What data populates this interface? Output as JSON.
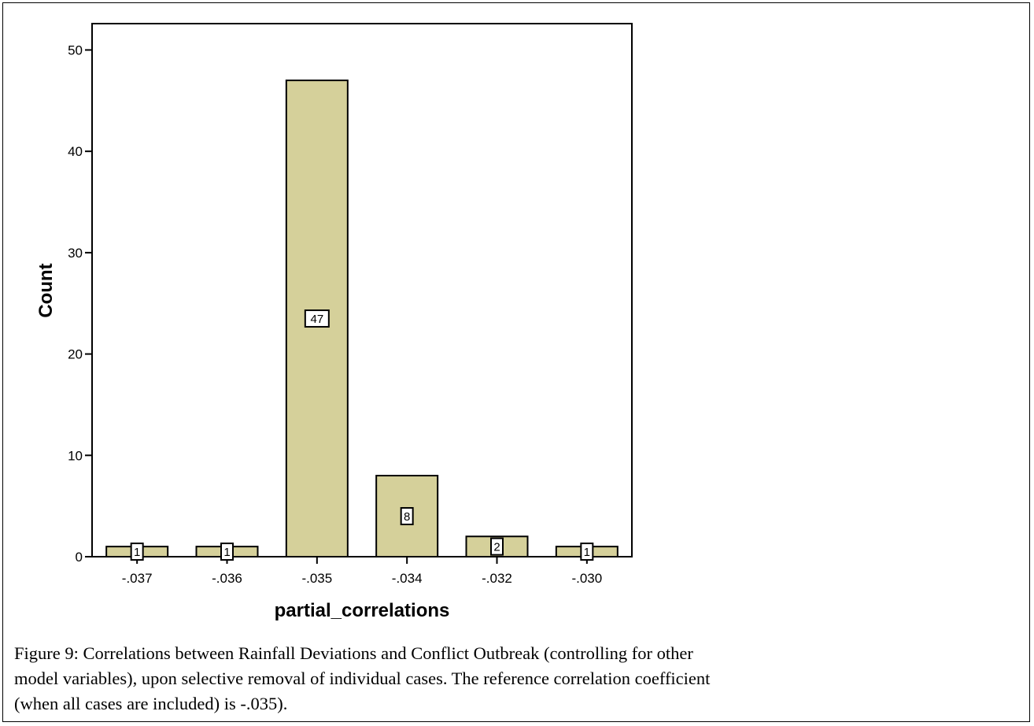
{
  "chart_data": {
    "type": "bar",
    "categories": [
      "-.037",
      "-.036",
      "-.035",
      "-.034",
      "-.032",
      "-.030"
    ],
    "values": [
      1,
      1,
      47,
      8,
      2,
      1
    ],
    "data_labels": [
      "1",
      "1",
      "47",
      "8",
      "2",
      "1"
    ],
    "xlabel": "partial_correlations",
    "ylabel": "Count",
    "ylim": [
      0,
      52.6
    ],
    "yticks": [
      0,
      10,
      20,
      30,
      40,
      50
    ],
    "grid": false,
    "colors": {
      "bar_fill": "#d5d09a",
      "bar_stroke": "#000000"
    }
  },
  "caption": {
    "lines": [
      "Figure 9: Correlations between Rainfall Deviations and Conflict Outbreak (controlling for other",
      "model variables), upon selective removal of individual cases.  The reference correlation coefficient",
      "(when all cases are included) is -.035)."
    ]
  }
}
